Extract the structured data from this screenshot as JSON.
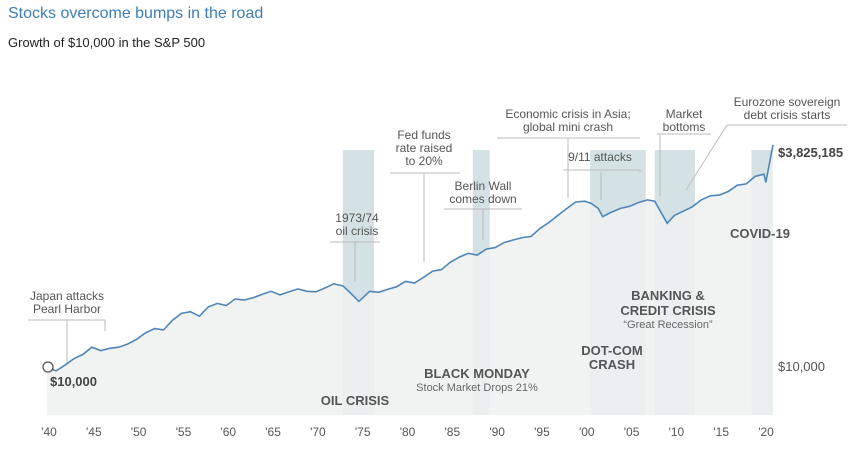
{
  "header": {
    "title": "Stocks overcome bumps in the road",
    "subtitle": "Growth of $10,000 in the S&P 500"
  },
  "colors": {
    "line": "#4f86b8",
    "area": "#eef1f1",
    "band": "#d4e2e6",
    "title": "#3d7fb5",
    "leader": "#bbbbbb"
  },
  "chart_data": {
    "type": "line",
    "title": "Stocks overcome bumps in the road",
    "subtitle": "Growth of $10,000 in the S&P 500",
    "y_scale": "log",
    "x_range": [
      1940,
      2021
    ],
    "y_range": [
      7000,
      5000000
    ],
    "x_tick_labels": [
      "'40",
      "'45",
      "'50",
      "'55",
      "'60",
      "'65",
      "'70",
      "'75",
      "'80",
      "'85",
      "'90",
      "'95",
      "'00",
      "'05",
      "'10",
      "'15",
      "'20"
    ],
    "x_tick_values": [
      1940,
      1945,
      1950,
      1955,
      1960,
      1965,
      1970,
      1975,
      1980,
      1985,
      1990,
      1995,
      2000,
      2005,
      2010,
      2015,
      2020
    ],
    "y_labels": [
      "$10,000"
    ],
    "start_label": "$10,000",
    "end_label": "$3,825,185",
    "series": [
      {
        "x": [
          1940,
          1941,
          1942,
          1943,
          1944,
          1945,
          1946,
          1947,
          1948,
          1949,
          1950,
          1951,
          1952,
          1953,
          1954,
          1955,
          1956,
          1957,
          1958,
          1959,
          1960,
          1961,
          1962,
          1963,
          1964,
          1965,
          1966,
          1967,
          1968,
          1969,
          1970,
          1971,
          1972,
          1973,
          1973.9,
          1974.8,
          1976,
          1977,
          1978,
          1979,
          1980,
          1981,
          1982,
          1983,
          1984,
          1985,
          1986,
          1987,
          1988,
          1989,
          1990,
          1991,
          1992,
          1993,
          1994,
          1995,
          1996,
          1997,
          1998,
          1999,
          2000,
          2000.7,
          2001.5,
          2002,
          2002.8,
          2004,
          2005,
          2006,
          2007,
          2007.8,
          2009.2,
          2010,
          2011,
          2012,
          2013,
          2014,
          2015,
          2016,
          2017,
          2018,
          2019,
          2020,
          2020.2,
          2021
        ],
        "y": [
          10000,
          9000,
          10500,
          12500,
          14000,
          17000,
          15500,
          16500,
          17000,
          18500,
          21000,
          25000,
          28000,
          27000,
          35000,
          42000,
          44000,
          39000,
          50000,
          55000,
          52000,
          62000,
          60000,
          64000,
          70000,
          76000,
          69000,
          75000,
          81000,
          76000,
          75000,
          83000,
          93000,
          88000,
          72000,
          58000,
          76000,
          74000,
          80000,
          86000,
          99000,
          95000,
          110000,
          130000,
          136000,
          165000,
          190000,
          210000,
          200000,
          235000,
          245000,
          280000,
          300000,
          320000,
          330000,
          410000,
          480000,
          580000,
          700000,
          830000,
          850000,
          800000,
          700000,
          560000,
          620000,
          700000,
          740000,
          820000,
          880000,
          850000,
          470000,
          580000,
          650000,
          730000,
          880000,
          980000,
          1000000,
          1100000,
          1300000,
          1350000,
          1650000,
          1750000,
          1400000,
          3825185
        ]
      }
    ],
    "shaded_periods": [
      {
        "label": "OIL CRISIS",
        "start": 1973,
        "end": 1976.5
      },
      {
        "label": "BLACK MONDAY",
        "sublabel": "Stock Market Drops 21%",
        "start": 1987.5,
        "end": 1989.4
      },
      {
        "label_line1": "DOT-COM",
        "label_line2": "CRASH",
        "start": 2000.6,
        "end": 2006.8
      },
      {
        "label_line1": "BANKING &",
        "label_line2": "CREDIT CRISIS",
        "sublabel": "“Great Recession”",
        "start": 2007.8,
        "end": 2012.3
      },
      {
        "label": "COVID-19",
        "start": 2018.6,
        "end": 2021
      }
    ],
    "annotations": [
      {
        "lines": [
          "Japan attacks",
          "Pearl Harbor"
        ],
        "x": 1941
      },
      {
        "lines": [
          "1973/74",
          "oil crisis"
        ],
        "x": 1974.5
      },
      {
        "lines": [
          "Fed funds",
          "rate raised",
          "to 20%"
        ],
        "x": 1982.5
      },
      {
        "lines": [
          "Berlin Wall",
          "comes down"
        ],
        "x": 1989.5
      },
      {
        "lines": [
          "Economic crisis in Asia;",
          "global mini crash"
        ],
        "x": 1998.5
      },
      {
        "lines": [
          "9/11 attacks"
        ],
        "x": 2001.5
      },
      {
        "lines": [
          "Market",
          "bottoms"
        ],
        "x": 2009.2
      },
      {
        "lines": [
          "Eurozone sovereign",
          "debt crisis starts"
        ],
        "x": 2011
      }
    ]
  }
}
